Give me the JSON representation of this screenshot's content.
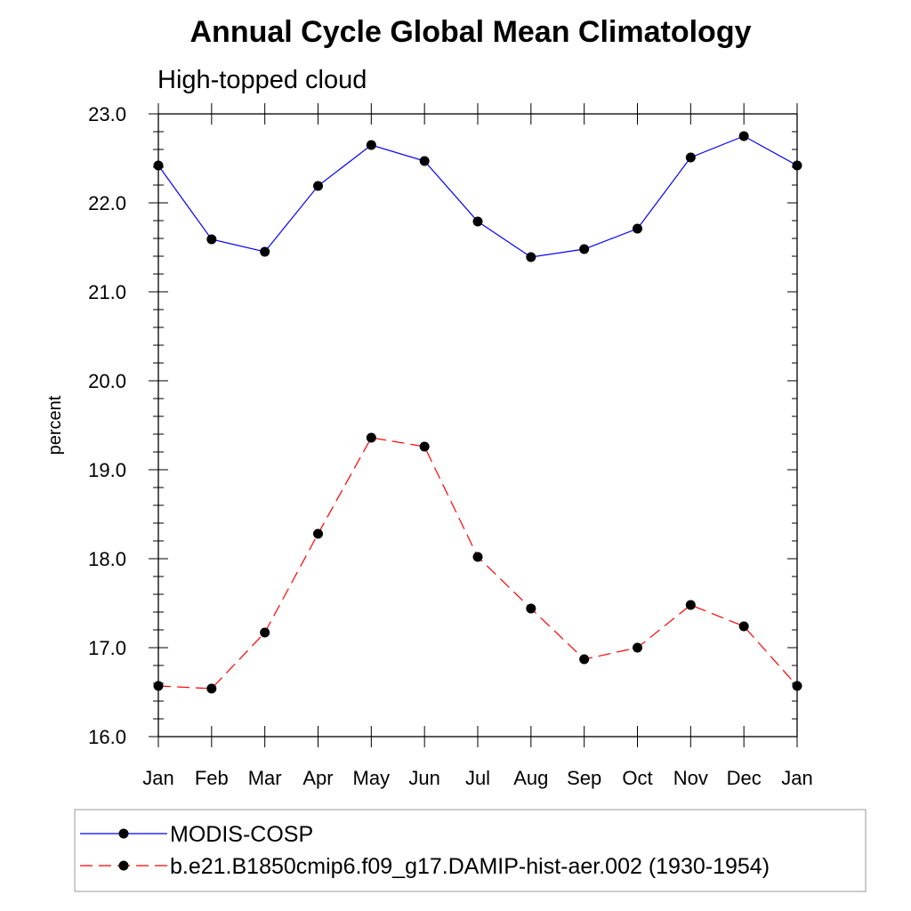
{
  "chart_data": {
    "type": "line",
    "title": "Annual Cycle Global Mean Climatology",
    "subtitle": "High-topped cloud",
    "xlabel": "",
    "ylabel": "percent",
    "categories": [
      "Jan",
      "Feb",
      "Mar",
      "Apr",
      "May",
      "Jun",
      "Jul",
      "Aug",
      "Sep",
      "Oct",
      "Nov",
      "Dec",
      "Jan"
    ],
    "ylim": [
      16.0,
      23.0
    ],
    "yticks": [
      "16.0",
      "17.0",
      "18.0",
      "19.0",
      "20.0",
      "21.0",
      "22.0",
      "23.0"
    ],
    "grid": false,
    "legend_position": "bottom",
    "series": [
      {
        "name": "MODIS-COSP",
        "color": "#0000ff",
        "line_style": "solid",
        "marker": "filled-circle",
        "values": [
          22.42,
          21.59,
          21.45,
          22.19,
          22.65,
          22.47,
          21.79,
          21.39,
          21.48,
          21.71,
          22.51,
          22.75,
          22.42
        ]
      },
      {
        "name": "b.e21.B1850cmip6.f09_g17.DAMIP-hist-aer.002 (1930-1954)",
        "color": "#ff0000",
        "line_style": "dashed",
        "marker": "filled-circle",
        "values": [
          16.57,
          16.54,
          17.17,
          18.28,
          19.36,
          19.26,
          18.02,
          17.44,
          16.87,
          17.0,
          17.48,
          17.24,
          16.57
        ]
      }
    ]
  }
}
